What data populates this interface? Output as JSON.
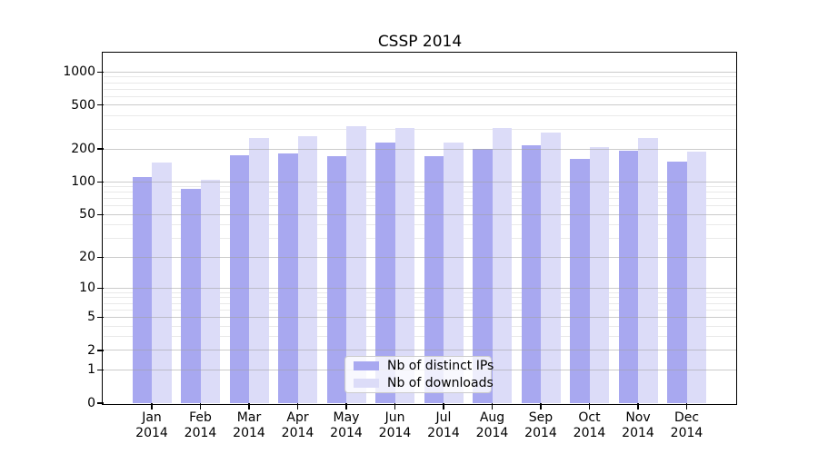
{
  "chart_data": {
    "type": "bar",
    "title": "CSSP 2014",
    "categories": [
      "Jan",
      "Feb",
      "Mar",
      "Apr",
      "May",
      "Jun",
      "Jul",
      "Aug",
      "Sep",
      "Oct",
      "Nov",
      "Dec"
    ],
    "x_year_label": "2014",
    "series": [
      {
        "name": "Nb of distinct IPs",
        "color": "#a8a8f0",
        "values": [
          110,
          86,
          176,
          183,
          173,
          230,
          172,
          201,
          214,
          163,
          193,
          153
        ]
      },
      {
        "name": "Nb of downloads",
        "color": "#dcdcf8",
        "values": [
          151,
          105,
          252,
          262,
          323,
          310,
          228,
          307,
          283,
          209,
          249,
          189
        ]
      }
    ],
    "y_axis": {
      "scale": "log1p",
      "ticks": [
        0,
        1,
        2,
        5,
        10,
        20,
        50,
        100,
        200,
        500,
        1000
      ],
      "minor_ticks": [
        3,
        4,
        6,
        7,
        8,
        9,
        30,
        40,
        60,
        70,
        80,
        90,
        300,
        400,
        600,
        700,
        800,
        900
      ],
      "top_value": 1468
    },
    "grid": true,
    "legend_position": "lower-center"
  }
}
